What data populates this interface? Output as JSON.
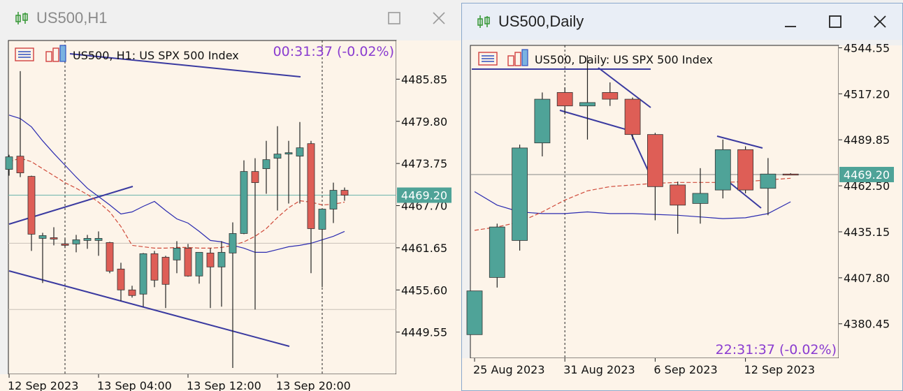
{
  "window_h1": {
    "title": "US500,H1",
    "chart_label": "US500, H1:  US SPX 500 Index",
    "timer": "00:31:37 (-0.02%)",
    "price_badge": "4469.20",
    "icon": "chart-candles-icon"
  },
  "window_daily": {
    "title": "US500,Daily",
    "chart_label": "US500, Daily:  US SPX 500 Index",
    "timer": "22:31:37 (-0.02%)",
    "price_badge": "4469.20",
    "icon": "chart-candles-icon"
  },
  "colors": {
    "bg": "#fdf4e9",
    "bull": "#4fa398",
    "bear": "#de5e56",
    "ma_slow": "#2b2bb0",
    "ma_fast": "#d04a3a",
    "trendline": "#3a3aa0",
    "badge": "#4fa398",
    "timer_text": "#8a3cd0"
  },
  "chart_data": [
    {
      "type": "candlestick",
      "name": "US500,H1",
      "x_ticks": [
        "12 Sep 2023",
        "13 Sep 04:00",
        "13 Sep 12:00",
        "13 Sep 20:00"
      ],
      "y_ticks": [
        "4485.85",
        "4479.80",
        "4473.75",
        "4467.70",
        "4461.65",
        "4455.60",
        "4449.55"
      ],
      "ylim": [
        4443.5,
        4491.4
      ],
      "current_price": 4469.2,
      "candles": [
        {
          "o": 4472.9,
          "c": 4474.7,
          "h": 4475.0,
          "l": 4472.0
        },
        {
          "o": 4474.8,
          "c": 4472.4,
          "h": 4487.0,
          "l": 4471.8
        },
        {
          "o": 4471.9,
          "c": 4463.6,
          "h": 4472.0,
          "l": 4461.2
        },
        {
          "o": 4463.0,
          "c": 4463.4,
          "h": 4463.8,
          "l": 4456.6
        },
        {
          "o": 4463.1,
          "c": 4462.9,
          "h": 4464.6,
          "l": 4462.0
        },
        {
          "o": 4462.2,
          "c": 4462.0,
          "h": 4463.0,
          "l": 4461.6
        },
        {
          "o": 4462.2,
          "c": 4462.8,
          "h": 4463.5,
          "l": 4461.0
        },
        {
          "o": 4462.7,
          "c": 4463.0,
          "h": 4463.5,
          "l": 4461.5
        },
        {
          "o": 4462.7,
          "c": 4463.0,
          "h": 4464.0,
          "l": 4460.5
        },
        {
          "o": 4462.4,
          "c": 4458.3,
          "h": 4462.5,
          "l": 4458.0
        },
        {
          "o": 4458.6,
          "c": 4455.6,
          "h": 4459.5,
          "l": 4454.0
        },
        {
          "o": 4455.6,
          "c": 4454.8,
          "h": 4456.2,
          "l": 4454.5
        },
        {
          "o": 4455.0,
          "c": 4460.8,
          "h": 4460.9,
          "l": 4453.2
        },
        {
          "o": 4460.8,
          "c": 4457.0,
          "h": 4461.2,
          "l": 4456.0
        },
        {
          "o": 4460.3,
          "c": 4456.4,
          "h": 4460.5,
          "l": 4453.0
        },
        {
          "o": 4459.9,
          "c": 4461.6,
          "h": 4462.6,
          "l": 4458.0
        },
        {
          "o": 4461.6,
          "c": 4457.6,
          "h": 4462.2,
          "l": 4457.5
        },
        {
          "o": 4457.6,
          "c": 4461.0,
          "h": 4461.0,
          "l": 4456.5
        },
        {
          "o": 4460.9,
          "c": 4458.9,
          "h": 4461.6,
          "l": 4453.0
        },
        {
          "o": 4458.9,
          "c": 4461.0,
          "h": 4462.6,
          "l": 4453.2
        },
        {
          "o": 4460.9,
          "c": 4463.7,
          "h": 4465.3,
          "l": 4444.4
        },
        {
          "o": 4463.7,
          "c": 4472.6,
          "h": 4474.2,
          "l": 4463.6
        },
        {
          "o": 4472.6,
          "c": 4471.0,
          "h": 4474.5,
          "l": 4452.8
        },
        {
          "o": 4473.0,
          "c": 4474.3,
          "h": 4477.0,
          "l": 4469.4
        },
        {
          "o": 4474.5,
          "c": 4475.1,
          "h": 4479.1,
          "l": 4467.0
        },
        {
          "o": 4475.1,
          "c": 4475.3,
          "h": 4477.0,
          "l": 4468.0
        },
        {
          "o": 4474.8,
          "c": 4476.0,
          "h": 4479.7,
          "l": 4468.0
        },
        {
          "o": 4476.6,
          "c": 4464.4,
          "h": 4477.0,
          "l": 4458.0
        },
        {
          "o": 4464.3,
          "c": 4467.2,
          "h": 4467.0,
          "l": 4456.0
        },
        {
          "o": 4467.2,
          "c": 4469.9,
          "h": 4471.0,
          "l": 4465.2
        },
        {
          "o": 4469.9,
          "c": 4469.2,
          "h": 4470.3,
          "l": 4468.4
        }
      ],
      "ma_slow": [
        4480.7,
        4480.2,
        4479.0,
        4477.0,
        4475.2,
        4473.5,
        4471.8,
        4470.2,
        4469.0,
        4467.8,
        4466.5,
        4466.8,
        4467.6,
        4468.3,
        4467.0,
        4465.8,
        4465.2,
        4464.0,
        4462.7,
        4462.5,
        4462.0,
        4461.6,
        4461.0,
        4461.0,
        4461.4,
        4461.8,
        4462.0,
        4462.3,
        4462.8,
        4463.3,
        4464.0
      ],
      "ma_fast": [
        4474.0,
        4474.5,
        4474.0,
        4473.0,
        4472.0,
        4471.0,
        4470.2,
        4469.3,
        4468.2,
        4466.8,
        4464.7,
        4462.0,
        4461.8,
        4461.6,
        4461.6,
        4461.7,
        4461.7,
        4461.6,
        4461.6,
        4461.7,
        4462.0,
        4462.5,
        4463.3,
        4464.4,
        4466.0,
        4467.4,
        4468.4,
        4468.2,
        4467.8,
        4467.9,
        4468.2
      ]
    },
    {
      "type": "candlestick",
      "name": "US500,Daily",
      "x_ticks": [
        "25 Aug 2023",
        "31 Aug 2023",
        "6 Sep 2023",
        "12 Sep 2023"
      ],
      "y_ticks": [
        "4544.55",
        "4517.20",
        "4489.85",
        "4462.50",
        "4435.15",
        "4407.80",
        "4380.45"
      ],
      "ylim": [
        4360,
        4546
      ],
      "current_price": 4469.2,
      "candles": [
        {
          "o": 4374.0,
          "c": 4400.0,
          "h": 4400.0,
          "l": 4374.0
        },
        {
          "o": 4408.0,
          "c": 4438.0,
          "h": 4440.0,
          "l": 4402.0
        },
        {
          "o": 4430.0,
          "c": 4485.0,
          "h": 4487.0,
          "l": 4424.0
        },
        {
          "o": 4488.0,
          "c": 4514.0,
          "h": 4518.0,
          "l": 4480.0
        },
        {
          "o": 4518.0,
          "c": 4510.0,
          "h": 4521.0,
          "l": 4505.0
        },
        {
          "o": 4510.0,
          "c": 4512.0,
          "h": 4540.0,
          "l": 4490.0
        },
        {
          "o": 4518.0,
          "c": 4514.0,
          "h": 4524.0,
          "l": 4510.0
        },
        {
          "o": 4514.0,
          "c": 4493.0,
          "h": 4515.0,
          "l": 4490.0
        },
        {
          "o": 4493.0,
          "c": 4462.0,
          "h": 4494.0,
          "l": 4442.0
        },
        {
          "o": 4463.0,
          "c": 4451.0,
          "h": 4465.0,
          "l": 4434.0
        },
        {
          "o": 4452.0,
          "c": 4458.0,
          "h": 4473.0,
          "l": 4440.0
        },
        {
          "o": 4460.0,
          "c": 4484.0,
          "h": 4490.0,
          "l": 4455.0
        },
        {
          "o": 4484.0,
          "c": 4460.0,
          "h": 4486.0,
          "l": 4458.0
        },
        {
          "o": 4461.0,
          "c": 4469.5,
          "h": 4479.0,
          "l": 4445.0
        },
        {
          "o": 4469.5,
          "c": 4469.2,
          "h": 4470.0,
          "l": 4468.8
        }
      ],
      "ma_slow": [
        4459.0,
        4451.0,
        4447.0,
        4446.0,
        4446.0,
        4447.0,
        4446.0,
        4446.0,
        4445.5,
        4445.0,
        4444.0,
        4443.0,
        4443.5,
        4446.0,
        4453.0
      ],
      "ma_fast": [
        4436.0,
        4438.0,
        4441.0,
        4447.0,
        4454.0,
        4459.5,
        4462.0,
        4463.0,
        4464.0,
        4464.5,
        4464.5,
        4464.5,
        4465.0,
        4466.0,
        4467.0
      ]
    }
  ]
}
